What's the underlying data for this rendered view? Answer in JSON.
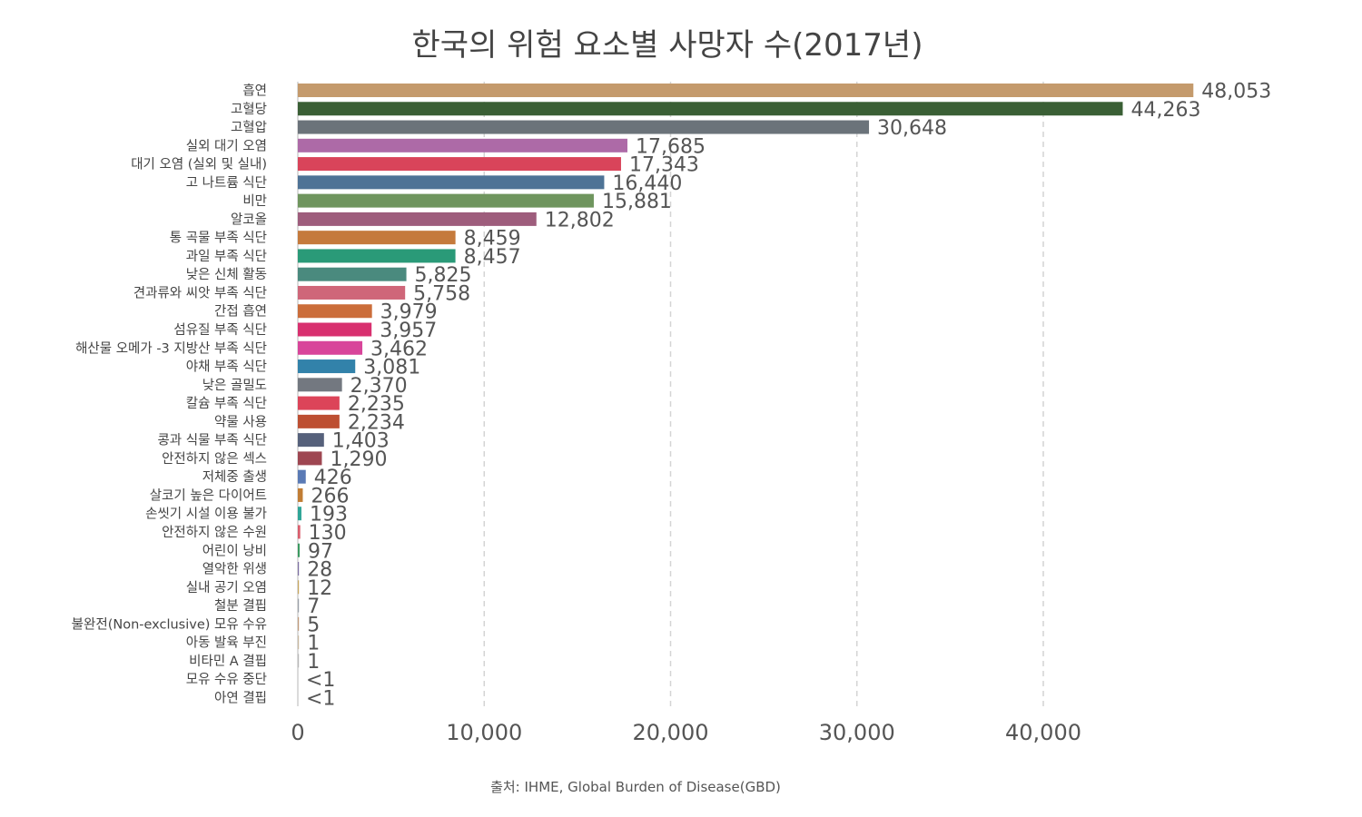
{
  "chart_data": {
    "type": "bar",
    "orientation": "horizontal",
    "title": "한국의 위험 요소별 사망자 수(2017년)",
    "source": "출처: IHME, Global Burden of Disease(GBD)",
    "xlabel": "",
    "ylabel": "",
    "xlim": [
      0,
      50000
    ],
    "x_ticks": [
      0,
      10000,
      20000,
      30000,
      40000
    ],
    "x_tick_labels": [
      "0",
      "10,000",
      "20,000",
      "30,000",
      "40,000"
    ],
    "grid": "vertical dashed",
    "categories": [
      "흡연",
      "고혈당",
      "고혈압",
      "실외 대기 오염",
      "대기 오염 (실외 및 실내)",
      "고 나트륨 식단",
      "비만",
      "알코올",
      "통 곡물 부족 식단",
      "과일 부족 식단",
      "낮은 신체 활동",
      "견과류와 씨앗 부족 식단",
      "간접 흡연",
      "섬유질 부족 식단",
      "해산물 오메가 -3 지방산 부족 식단",
      "야채 부족 식단",
      "낮은 골밀도",
      "칼슘 부족 식단",
      "약물 사용",
      "콩과 식물 부족 식단",
      "안전하지 않은 섹스",
      "저체중 출생",
      "살코기 높은 다이어트",
      "손씻기 시설 이용 불가",
      "안전하지 않은 수원",
      "어린이 낭비",
      "열악한 위생",
      "실내 공기 오염",
      "철분 결핍",
      "불완전(Non-exclusive) 모유 수유",
      "아동 발육 부진",
      "비타민 A 결핍",
      "모유 수유 중단",
      "아연 결핍"
    ],
    "values": [
      48053,
      44263,
      30648,
      17685,
      17343,
      16440,
      15881,
      12802,
      8459,
      8457,
      5825,
      5758,
      3979,
      3957,
      3462,
      3081,
      2370,
      2235,
      2234,
      1403,
      1290,
      426,
      266,
      193,
      130,
      97,
      28,
      12,
      7,
      5,
      1,
      1,
      0.4,
      0.3
    ],
    "value_labels": [
      "48,053",
      "44,263",
      "30,648",
      "17,685",
      "17,343",
      "16,440",
      "15,881",
      "12,802",
      "8,459",
      "8,457",
      "5,825",
      "5,758",
      "3,979",
      "3,957",
      "3,462",
      "3,081",
      "2,370",
      "2,235",
      "2,234",
      "1,403",
      "1,290",
      "426",
      "266",
      "193",
      "130",
      "97",
      "28",
      "12",
      "7",
      "5",
      "1",
      "1",
      "<1",
      "<1"
    ],
    "colors": [
      "#c49a6c",
      "#3a5f35",
      "#6b737a",
      "#ad6aa7",
      "#d9445a",
      "#4e7396",
      "#6f955e",
      "#9e5d7c",
      "#c57a3c",
      "#2a9a78",
      "#4a8a7e",
      "#cf6679",
      "#cb6d3a",
      "#d8306f",
      "#d8459a",
      "#3282aa",
      "#737880",
      "#dc4459",
      "#bd4f32",
      "#56617b",
      "#9e4651",
      "#5a7ab5",
      "#c17d34",
      "#2fa597",
      "#d95d6c",
      "#3a9a60",
      "#7c6ea2",
      "#c7a65d",
      "#9aa0a8",
      "#c09a7a",
      "#c8b8a0",
      "#b8b8b8",
      "#cccccc",
      "#cccccc"
    ]
  }
}
